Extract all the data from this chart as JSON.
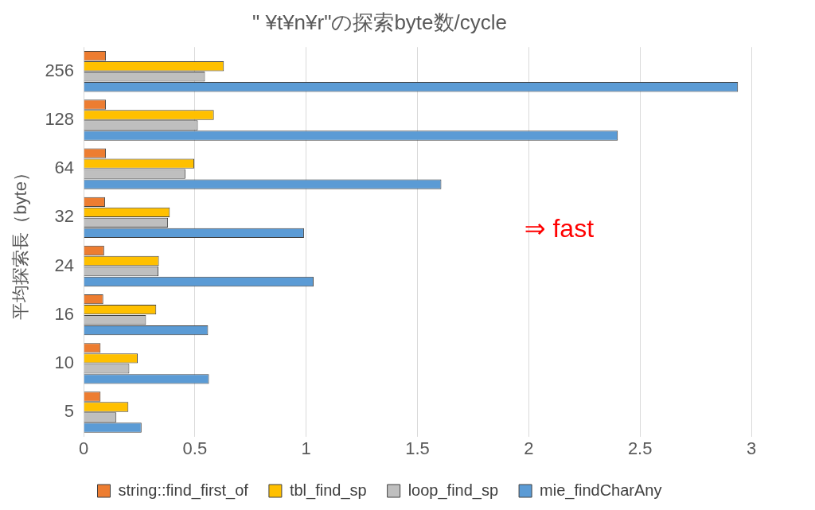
{
  "chart_data": {
    "type": "bar",
    "orientation": "horizontal",
    "title": "\" ¥t¥n¥r\"の探索byte数/cycle",
    "ylabel": "平均探索長（byte）",
    "categories": [
      "256",
      "128",
      "64",
      "32",
      "24",
      "16",
      "10",
      "5"
    ],
    "series": [
      {
        "name": "string::find_first_of",
        "color": "#ed7d31",
        "values": [
          0.1,
          0.1,
          0.1,
          0.096,
          0.092,
          0.088,
          0.076,
          0.076
        ]
      },
      {
        "name": "tbl_find_sp",
        "color": "#ffc000",
        "values": [
          0.63,
          0.585,
          0.497,
          0.387,
          0.338,
          0.326,
          0.243,
          0.201
        ]
      },
      {
        "name": "loop_find_sp",
        "color": "#bfbfbf",
        "values": [
          0.545,
          0.513,
          0.457,
          0.379,
          0.336,
          0.28,
          0.205,
          0.147
        ]
      },
      {
        "name": "mie_findCharAny",
        "color": "#5b9bd5",
        "values": [
          2.94,
          2.4,
          1.607,
          0.99,
          1.033,
          0.559,
          0.563,
          0.26
        ]
      }
    ],
    "xlim": [
      0,
      3
    ],
    "xticks": [
      0,
      0.5,
      1,
      1.5,
      2,
      2.5,
      3
    ],
    "grid": "x",
    "legend": "bottom",
    "annotations": [
      "⇒ fast"
    ]
  }
}
